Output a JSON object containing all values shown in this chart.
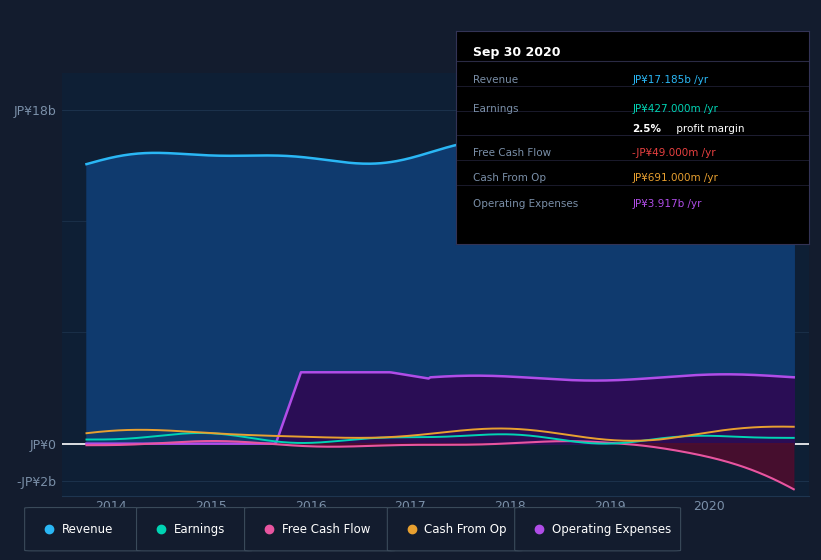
{
  "bg_color": "#131c2e",
  "plot_bg_color": "#0e1f35",
  "grid_color": "#1e3550",
  "text_color": "#7a8fa8",
  "ylim": [
    -2800000000.0,
    20000000000.0
  ],
  "xlim": [
    2013.5,
    2021.0
  ],
  "ytick_positions": [
    18000000000.0,
    0,
    -2000000000.0
  ],
  "ytick_labels": [
    "JP¥18b",
    "JP¥0",
    "-JP¥2b"
  ],
  "xtick_values": [
    2014,
    2015,
    2016,
    2017,
    2018,
    2019,
    2020
  ],
  "xtick_labels": [
    "2014",
    "2015",
    "2016",
    "2017",
    "2018",
    "2019",
    "2020"
  ],
  "revenue_color": "#2ab7f5",
  "revenue_fill": "#0f3a6e",
  "earnings_color": "#00d4b4",
  "fcf_color": "#e855a0",
  "fcf_fill": "#4d0d2e",
  "cashfromop_color": "#e8a030",
  "opex_color": "#b04de8",
  "opex_fill": "#2a0d55",
  "legend_items": [
    {
      "label": "Revenue",
      "color": "#2ab7f5"
    },
    {
      "label": "Earnings",
      "color": "#00d4b4"
    },
    {
      "label": "Free Cash Flow",
      "color": "#e855a0"
    },
    {
      "label": "Cash From Op",
      "color": "#e8a030"
    },
    {
      "label": "Operating Expenses",
      "color": "#b04de8"
    }
  ]
}
